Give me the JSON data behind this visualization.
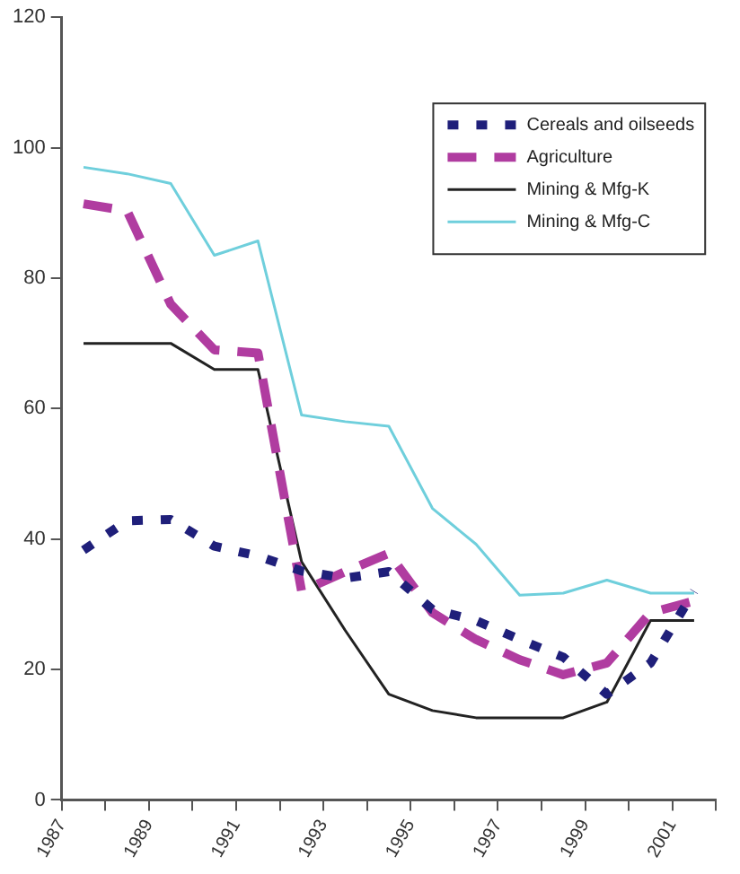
{
  "chart_data": {
    "type": "line",
    "xlim": [
      1987,
      2002
    ],
    "ylim": [
      0,
      120
    ],
    "xticks": [
      1987,
      {
        "value": 1988,
        "label": null
      },
      1989,
      {
        "value": 1990,
        "label": null
      },
      1991,
      {
        "value": 1992,
        "label": null
      },
      1993,
      {
        "value": 1994,
        "label": null
      },
      1995,
      {
        "value": 1996,
        "label": null
      },
      1997,
      {
        "value": 1998,
        "label": null
      },
      1999,
      {
        "value": 2000,
        "label": null
      },
      2001,
      {
        "value": 2002,
        "label": null
      }
    ],
    "yticks": [
      0,
      20,
      40,
      60,
      80,
      100,
      120
    ],
    "x": [
      1987.5,
      1988.5,
      1989.5,
      1990.5,
      1991.5,
      1992.5,
      1993.5,
      1994.5,
      1995.5,
      1996.5,
      1997.5,
      1998.5,
      1999.5,
      2000.5,
      2001.5
    ],
    "grid": false,
    "legend": "top right",
    "marker": "none",
    "series": [
      {
        "name": "Cereals and oilseeds",
        "color": "#1f1f7a",
        "line_style": "dotted",
        "values": [
          38.3,
          42.8,
          43,
          38.9,
          37.4,
          35.1,
          34,
          35,
          29.2,
          27.5,
          24.6,
          21.9,
          16.2,
          21,
          32
        ]
      },
      {
        "name": "Agriculture",
        "color": "#b03ca0",
        "line_style": "dashed",
        "values": [
          91.4,
          90.3,
          76,
          69,
          68.5,
          32,
          35,
          37.8,
          28.7,
          24.6,
          21.5,
          19.2,
          21,
          28.7,
          30.5
        ]
      },
      {
        "name": "Mining & Mfg-K",
        "color": "#222222",
        "line_style": "solid",
        "values": [
          70,
          70,
          70,
          66,
          66,
          36.5,
          26,
          16.2,
          13.7,
          12.6,
          12.6,
          12.6,
          15,
          27.5,
          27.5
        ]
      },
      {
        "name": "Mining & Mfg-C",
        "color": "#6fcfdc",
        "line_style": "solid",
        "values": [
          97,
          96,
          94.5,
          83.5,
          85.7,
          59,
          58,
          57.3,
          44.7,
          39.2,
          31.4,
          31.7,
          33.7,
          31.7,
          31.7
        ]
      }
    ]
  }
}
